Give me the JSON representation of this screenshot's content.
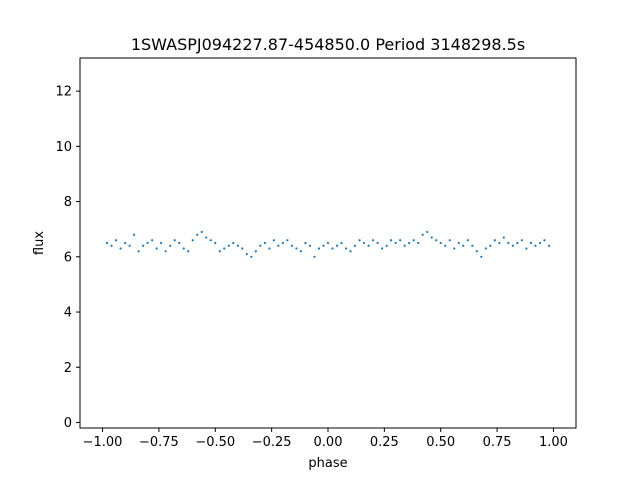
{
  "chart_data": {
    "type": "scatter",
    "title": "1SWASPJ094227.87-454850.0 Period 3148298.5s",
    "xlabel": "phase",
    "ylabel": "flux",
    "xlim": [
      -1.1,
      1.1
    ],
    "ylim": [
      -0.2,
      13.2
    ],
    "xticks": [
      -1.0,
      -0.75,
      -0.5,
      -0.25,
      0.0,
      0.25,
      0.5,
      0.75,
      1.0
    ],
    "xtick_labels": [
      "−1.00",
      "−0.75",
      "−0.50",
      "−0.25",
      "0.00",
      "0.25",
      "0.50",
      "0.75",
      "1.00"
    ],
    "yticks": [
      0,
      2,
      4,
      6,
      8,
      10,
      12
    ],
    "ytick_labels": [
      "0",
      "2",
      "4",
      "6",
      "8",
      "10",
      "12"
    ],
    "grid": false,
    "legend": "none",
    "marker_color": "#1f77b4",
    "series": [
      {
        "x": [
          -0.98,
          -0.96,
          -0.94,
          -0.92,
          -0.9,
          -0.88,
          -0.86,
          -0.84,
          -0.82,
          -0.8,
          -0.78,
          -0.76,
          -0.74,
          -0.72,
          -0.7,
          -0.68,
          -0.66,
          -0.64,
          -0.62,
          -0.6,
          -0.58,
          -0.56,
          -0.54,
          -0.52,
          -0.5,
          -0.48,
          -0.46,
          -0.44,
          -0.42,
          -0.4,
          -0.38,
          -0.36,
          -0.34,
          -0.32,
          -0.3,
          -0.28,
          -0.26,
          -0.24,
          -0.22,
          -0.2,
          -0.18,
          -0.16,
          -0.14,
          -0.12,
          -0.1,
          -0.08,
          -0.06,
          -0.04,
          -0.02,
          0.0,
          0.02,
          0.04,
          0.06,
          0.08,
          0.1,
          0.12,
          0.14,
          0.16,
          0.18,
          0.2,
          0.22,
          0.24,
          0.26,
          0.28,
          0.3,
          0.32,
          0.34,
          0.36,
          0.38,
          0.4,
          0.42,
          0.44,
          0.46,
          0.48,
          0.5,
          0.52,
          0.54,
          0.56,
          0.58,
          0.6,
          0.62,
          0.64,
          0.66,
          0.68,
          0.7,
          0.72,
          0.74,
          0.76,
          0.78,
          0.8,
          0.82,
          0.84,
          0.86,
          0.88,
          0.9,
          0.92,
          0.94,
          0.96,
          0.98
        ],
        "y": [
          6.5,
          6.4,
          6.6,
          6.3,
          6.5,
          6.4,
          6.8,
          6.2,
          6.4,
          6.5,
          6.6,
          6.3,
          6.5,
          6.2,
          6.4,
          6.6,
          6.5,
          6.3,
          6.2,
          6.6,
          6.8,
          6.9,
          6.7,
          6.6,
          6.5,
          6.2,
          6.3,
          6.4,
          6.5,
          6.4,
          6.3,
          6.1,
          6.0,
          6.2,
          6.4,
          6.5,
          6.3,
          6.6,
          6.4,
          6.5,
          6.6,
          6.4,
          6.3,
          6.2,
          6.5,
          6.4,
          6.0,
          6.3,
          6.4,
          6.5,
          6.3,
          6.4,
          6.5,
          6.3,
          6.2,
          6.4,
          6.6,
          6.5,
          6.4,
          6.6,
          6.5,
          6.3,
          6.4,
          6.6,
          6.5,
          6.6,
          6.4,
          6.5,
          6.6,
          6.5,
          6.8,
          6.9,
          6.7,
          6.6,
          6.5,
          6.4,
          6.6,
          6.3,
          6.5,
          6.4,
          6.6,
          6.4,
          6.2,
          6.0,
          6.3,
          6.4,
          6.6,
          6.5,
          6.7,
          6.5,
          6.4,
          6.5,
          6.6,
          6.3,
          6.5,
          6.4,
          6.5,
          6.6,
          6.4
        ]
      }
    ]
  }
}
